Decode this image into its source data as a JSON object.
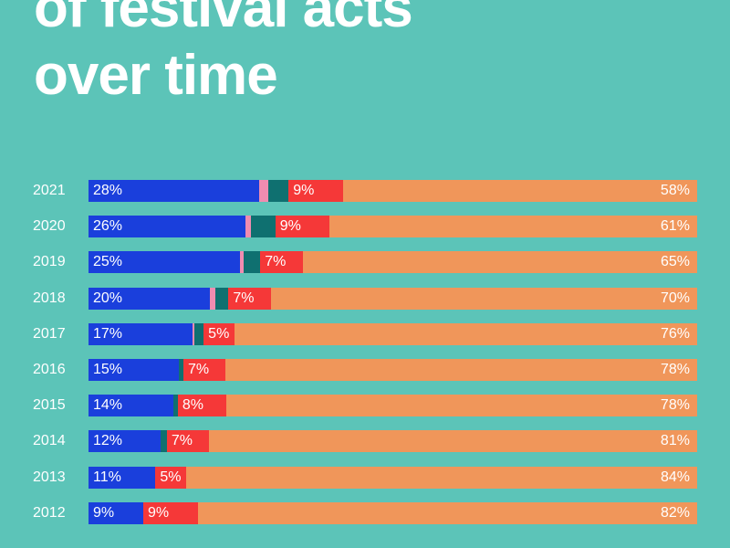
{
  "title_lines": [
    "of festival acts",
    "over time"
  ],
  "chart_data": {
    "type": "bar",
    "orientation": "horizontal",
    "stacked": true,
    "categories": [
      "2021",
      "2020",
      "2019",
      "2018",
      "2017",
      "2016",
      "2015",
      "2014",
      "2013",
      "2012"
    ],
    "series": [
      {
        "name": "blue",
        "color": "#1a3fdc",
        "values": [
          28,
          26,
          25,
          20,
          17,
          15,
          14,
          12,
          11,
          9
        ],
        "labels": [
          "28%",
          "26%",
          "25%",
          "20%",
          "17%",
          "15%",
          "14%",
          "12%",
          "11%",
          "9%"
        ]
      },
      {
        "name": "pink",
        "color": "#f08cb0",
        "values": [
          1.5,
          1,
          0.6,
          0.8,
          0.3,
          0,
          0,
          0,
          0,
          0
        ],
        "labels": []
      },
      {
        "name": "teal",
        "color": "#0f7070",
        "values": [
          3.3,
          4,
          2.7,
          2.2,
          1.6,
          0.7,
          0.8,
          1,
          0,
          0
        ],
        "labels": []
      },
      {
        "name": "red",
        "color": "#f53838",
        "values": [
          9,
          9,
          7,
          7,
          5,
          7,
          8,
          7,
          5,
          9
        ],
        "labels": [
          "9%",
          "9%",
          "7%",
          "7%",
          "5%",
          "7%",
          "8%",
          "7%",
          "5%",
          "9%"
        ]
      },
      {
        "name": "orange",
        "color": "#f0965a",
        "values": [
          58,
          61,
          65,
          70,
          76,
          78,
          78,
          81,
          84,
          82
        ],
        "labels": [
          "58%",
          "61%",
          "65%",
          "70%",
          "76%",
          "78%",
          "78%",
          "81%",
          "84%",
          "82%"
        ]
      }
    ],
    "xlim": [
      0,
      100
    ]
  }
}
